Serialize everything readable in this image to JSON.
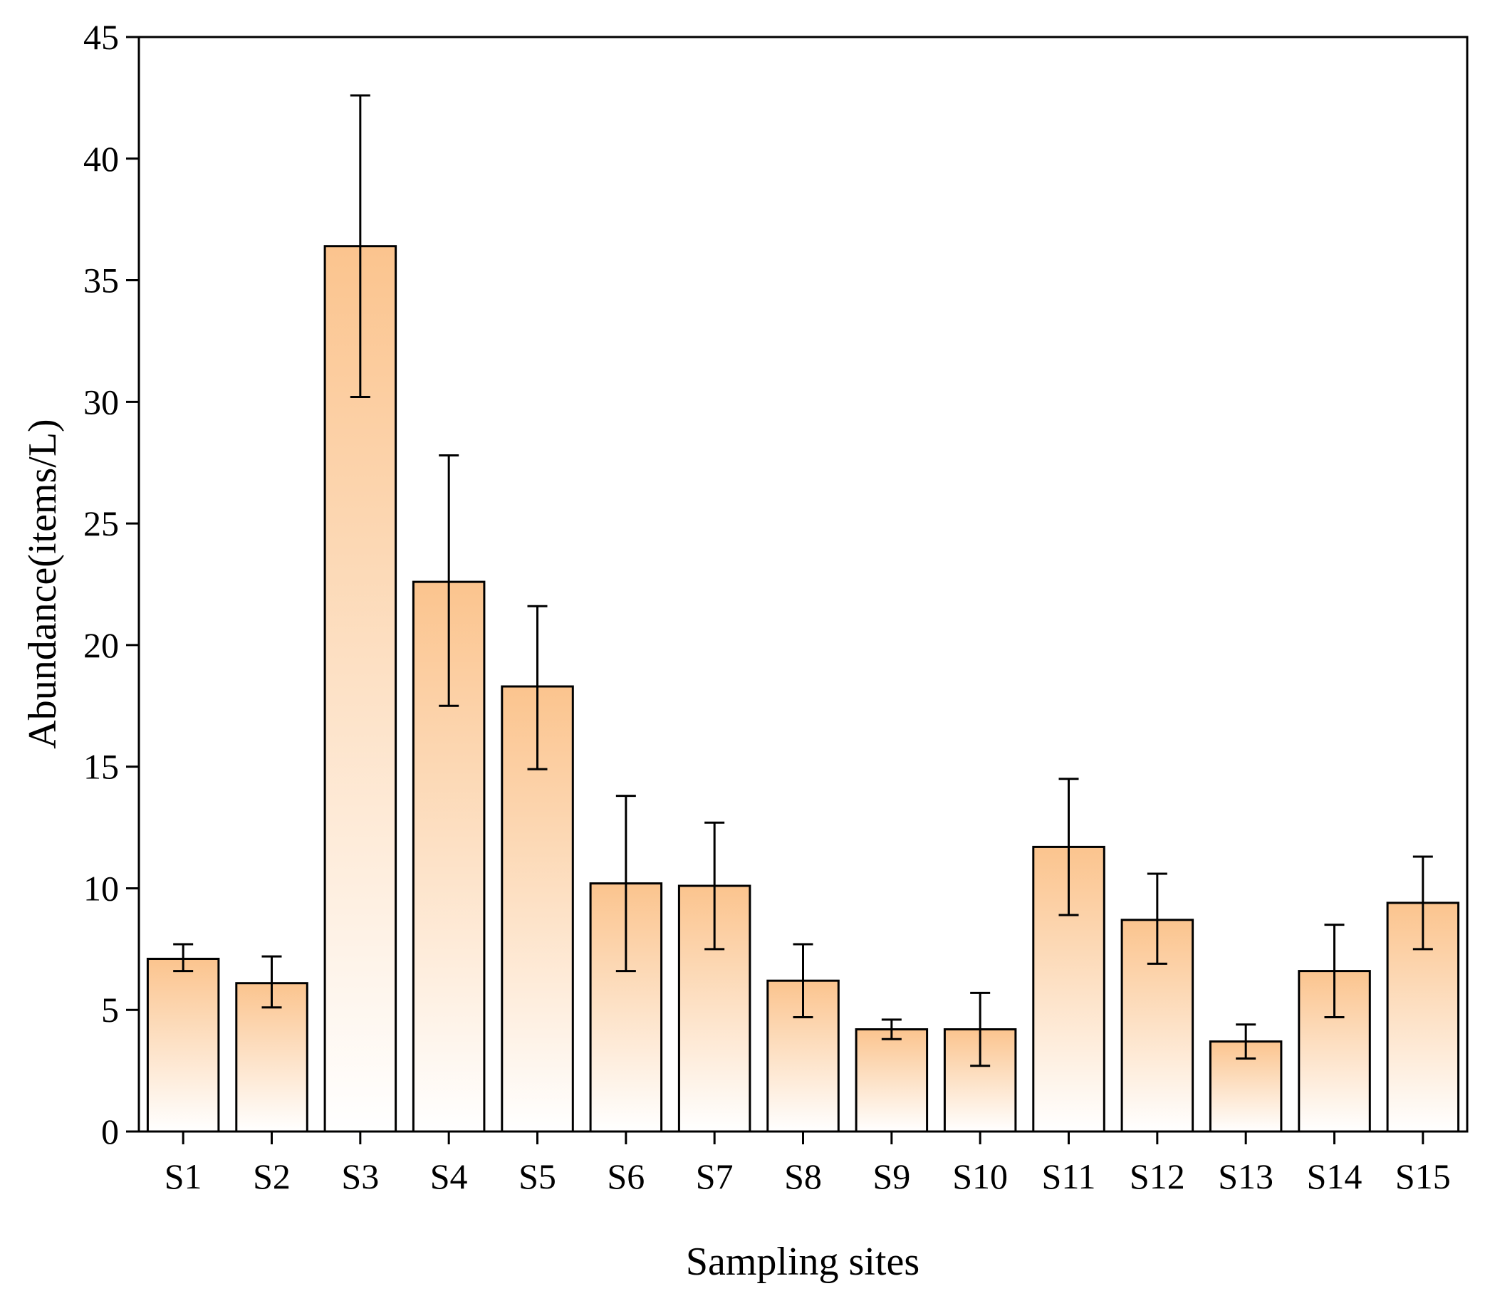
{
  "chart_data": {
    "type": "bar",
    "title": "",
    "xlabel": "Sampling sites",
    "ylabel": "Abundance(items/L)",
    "ylim": [
      0,
      45
    ],
    "yticks": [
      0,
      5,
      10,
      15,
      20,
      25,
      30,
      35,
      40,
      45
    ],
    "grid": false,
    "legend": "none",
    "categories": [
      "S1",
      "S2",
      "S3",
      "S4",
      "S5",
      "S6",
      "S7",
      "S8",
      "S9",
      "S10",
      "S11",
      "S12",
      "S13",
      "S14",
      "S15"
    ],
    "values": [
      7.1,
      6.1,
      36.4,
      22.6,
      18.3,
      10.2,
      10.1,
      6.2,
      4.2,
      4.2,
      11.7,
      8.7,
      3.7,
      6.6,
      9.4
    ],
    "error_low": [
      6.6,
      5.1,
      30.2,
      17.5,
      14.9,
      6.6,
      7.5,
      4.7,
      3.8,
      2.7,
      8.9,
      6.9,
      3.0,
      4.7,
      7.5
    ],
    "error_high": [
      7.7,
      7.2,
      42.6,
      27.8,
      21.6,
      13.8,
      12.7,
      7.7,
      4.6,
      5.7,
      14.5,
      10.6,
      4.4,
      8.5,
      11.3
    ],
    "colors": {
      "bar_top": "#fbc48e",
      "bar_bottom": "#ffffff",
      "outline": "#000000"
    }
  }
}
